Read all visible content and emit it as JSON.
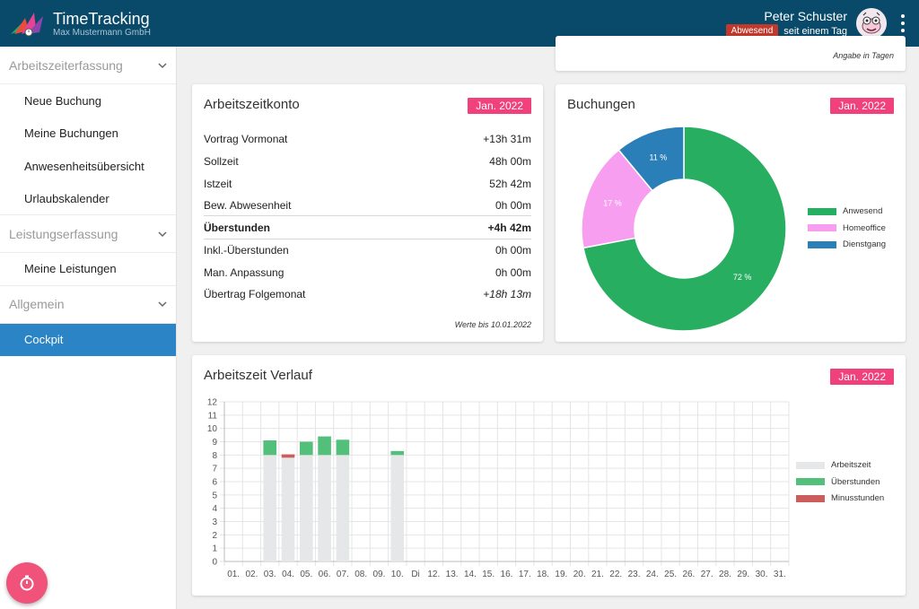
{
  "header": {
    "app_title": "TimeTracking",
    "company": "Max Mustermann GmbH",
    "user_name": "Peter Schuster",
    "status_badge": "Abwesend",
    "status_since": "seit einem Tag"
  },
  "sidebar": {
    "sections": [
      {
        "title": "Arbeitszeiterfassung",
        "items": [
          "Neue Buchung",
          "Meine Buchungen",
          "Anwesenheitsübersicht",
          "Urlaubskalender"
        ]
      },
      {
        "title": "Leistungserfassung",
        "items": [
          "Meine Leistungen"
        ]
      },
      {
        "title": "Allgemein",
        "items": [
          "Cockpit"
        ]
      }
    ],
    "active_item": "Cockpit"
  },
  "top_card": {
    "note": "Angabe in Tagen"
  },
  "account": {
    "title": "Arbeitszeitkonto",
    "month": "Jan. 2022",
    "rows": [
      {
        "label": "Vortrag Vormonat",
        "value": "+13h 31m"
      },
      {
        "label": "Sollzeit",
        "value": "48h 00m"
      },
      {
        "label": "Istzeit",
        "value": "52h 42m"
      },
      {
        "label": "Bew. Abwesenheit",
        "value": "0h 00m"
      },
      {
        "label": "Überstunden",
        "value": "+4h 42m"
      },
      {
        "label": "Inkl.-Überstunden",
        "value": "0h 00m"
      },
      {
        "label": "Man. Anpassung",
        "value": "0h 00m"
      },
      {
        "label": "Übertrag Folgemonat",
        "value": "+18h 13m"
      }
    ],
    "footnote": "Werte bis 10.01.2022"
  },
  "bookings": {
    "title": "Buchungen",
    "month": "Jan. 2022"
  },
  "history": {
    "title": "Arbeitszeit Verlauf",
    "month": "Jan. 2022"
  },
  "colors": {
    "header": "#094a6a",
    "accent_pink": "#f0417c",
    "active_nav": "#2a84c6",
    "green": "#27ae60",
    "pink": "#f79ef0",
    "blue": "#2a7fb8",
    "grey_bar": "#e6e7e9",
    "overtime": "#52c07a",
    "minus": "#cd5c5c"
  },
  "chart_data": [
    {
      "type": "pie",
      "donut": true,
      "labels": [
        "Anwesend",
        "Homeoffice",
        "Dienstgang"
      ],
      "values": [
        72,
        17,
        11
      ],
      "value_labels": [
        "72 %",
        "17 %",
        "11 %"
      ],
      "colors": [
        "#27ae60",
        "#f79ef0",
        "#2a7fb8"
      ],
      "legend_position": "right"
    },
    {
      "type": "bar",
      "stacked": true,
      "categories": [
        "01.",
        "02.",
        "03.",
        "04.",
        "05.",
        "06.",
        "07.",
        "08.",
        "09.",
        "10.",
        "Di",
        "12.",
        "13.",
        "14.",
        "15.",
        "16.",
        "17.",
        "18.",
        "19.",
        "20.",
        "21.",
        "22.",
        "23.",
        "24.",
        "25.",
        "26.",
        "27.",
        "28.",
        "29.",
        "30.",
        "31."
      ],
      "series": [
        {
          "name": "Arbeitszeit",
          "color": "#e6e7e9",
          "values": [
            0,
            0,
            8,
            7.8,
            8,
            8,
            8,
            0,
            0,
            8,
            0,
            0,
            0,
            0,
            0,
            0,
            0,
            0,
            0,
            0,
            0,
            0,
            0,
            0,
            0,
            0,
            0,
            0,
            0,
            0,
            0
          ]
        },
        {
          "name": "Überstunden",
          "color": "#52c07a",
          "values": [
            0,
            0,
            1.1,
            0,
            1,
            1.4,
            1.15,
            0,
            0,
            0.3,
            0,
            0,
            0,
            0,
            0,
            0,
            0,
            0,
            0,
            0,
            0,
            0,
            0,
            0,
            0,
            0,
            0,
            0,
            0,
            0,
            0
          ]
        },
        {
          "name": "Minusstunden",
          "color": "#cd5c5c",
          "values": [
            0,
            0,
            0,
            0.25,
            0,
            0,
            0,
            0,
            0,
            0,
            0,
            0,
            0,
            0,
            0,
            0,
            0,
            0,
            0,
            0,
            0,
            0,
            0,
            0,
            0,
            0,
            0,
            0,
            0,
            0,
            0
          ]
        }
      ],
      "ylim": [
        0,
        12
      ],
      "yticks": [
        0,
        1,
        2,
        3,
        4,
        5,
        6,
        7,
        8,
        9,
        10,
        11,
        12
      ],
      "grid": true,
      "legend_position": "right"
    }
  ]
}
